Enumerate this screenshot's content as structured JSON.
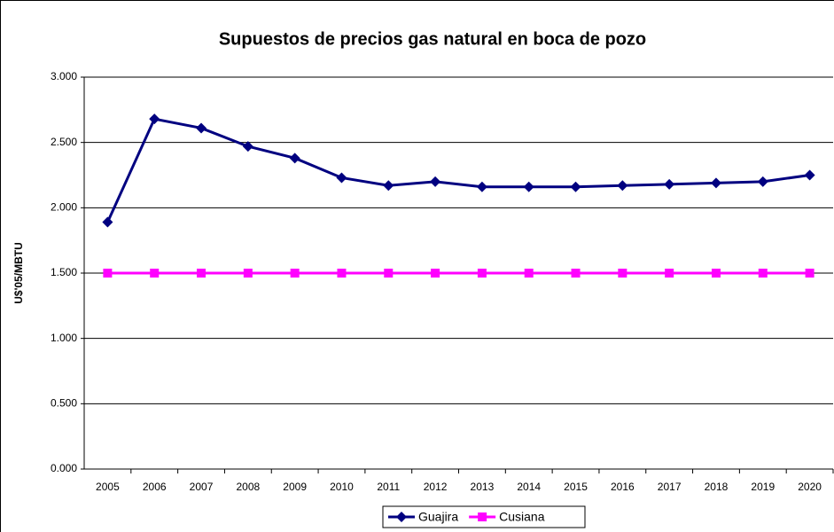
{
  "chart_data": {
    "type": "line",
    "title": "Supuestos de precios gas natural en boca de pozo",
    "y_label": "U$'05/MBTU",
    "categories": [
      "2005",
      "2006",
      "2007",
      "2008",
      "2009",
      "2010",
      "2011",
      "2012",
      "2013",
      "2014",
      "2015",
      "2016",
      "2017",
      "2018",
      "2019",
      "2020"
    ],
    "series": [
      {
        "name": "Guajira",
        "color": "#000080",
        "marker": "diamond",
        "values": [
          1.89,
          2.68,
          2.61,
          2.47,
          2.38,
          2.23,
          2.17,
          2.2,
          2.16,
          2.16,
          2.16,
          2.17,
          2.18,
          2.19,
          2.2,
          2.25
        ]
      },
      {
        "name": "Cusiana",
        "color": "#ff00ff",
        "marker": "square",
        "values": [
          1.5,
          1.5,
          1.5,
          1.5,
          1.5,
          1.5,
          1.5,
          1.5,
          1.5,
          1.5,
          1.5,
          1.5,
          1.5,
          1.5,
          1.5,
          1.5
        ]
      }
    ],
    "ylim": [
      0,
      3
    ],
    "yticks": [
      {
        "value": 0,
        "label": "0.000"
      },
      {
        "value": 0.5,
        "label": "0.500"
      },
      {
        "value": 1,
        "label": "1.000"
      },
      {
        "value": 1.5,
        "label": "1.500"
      },
      {
        "value": 2,
        "label": "2.000"
      },
      {
        "value": 2.5,
        "label": "2.500"
      },
      {
        "value": 3,
        "label": "3.000"
      }
    ],
    "grid": true,
    "legend": "bottom"
  }
}
